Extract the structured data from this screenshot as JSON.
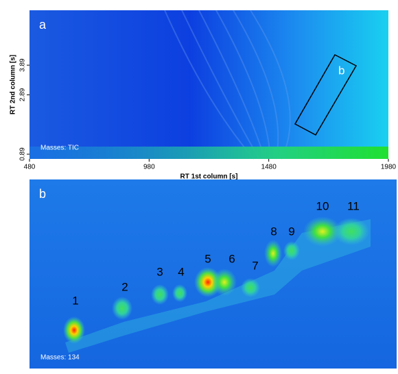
{
  "chart_data": [
    {
      "type": "heatmap",
      "panel_label": "a",
      "region_label": "b",
      "annotation": "Masses: TIC",
      "x_label": "RT 1st column [s]",
      "y_label": "RT 2nd column [s]",
      "xlim": [
        480,
        1980
      ],
      "xticks": [
        480,
        980,
        1480,
        1980
      ],
      "ylim": [
        0.73,
        5.74
      ],
      "yticks": [
        0.89,
        2.89,
        3.89
      ]
    },
    {
      "type": "heatmap",
      "panel_label": "b",
      "annotation": "Masses: 134",
      "peaks": [
        "1",
        "2",
        "3",
        "4",
        "5",
        "6",
        "7",
        "8",
        "9",
        "10",
        "11"
      ]
    }
  ]
}
